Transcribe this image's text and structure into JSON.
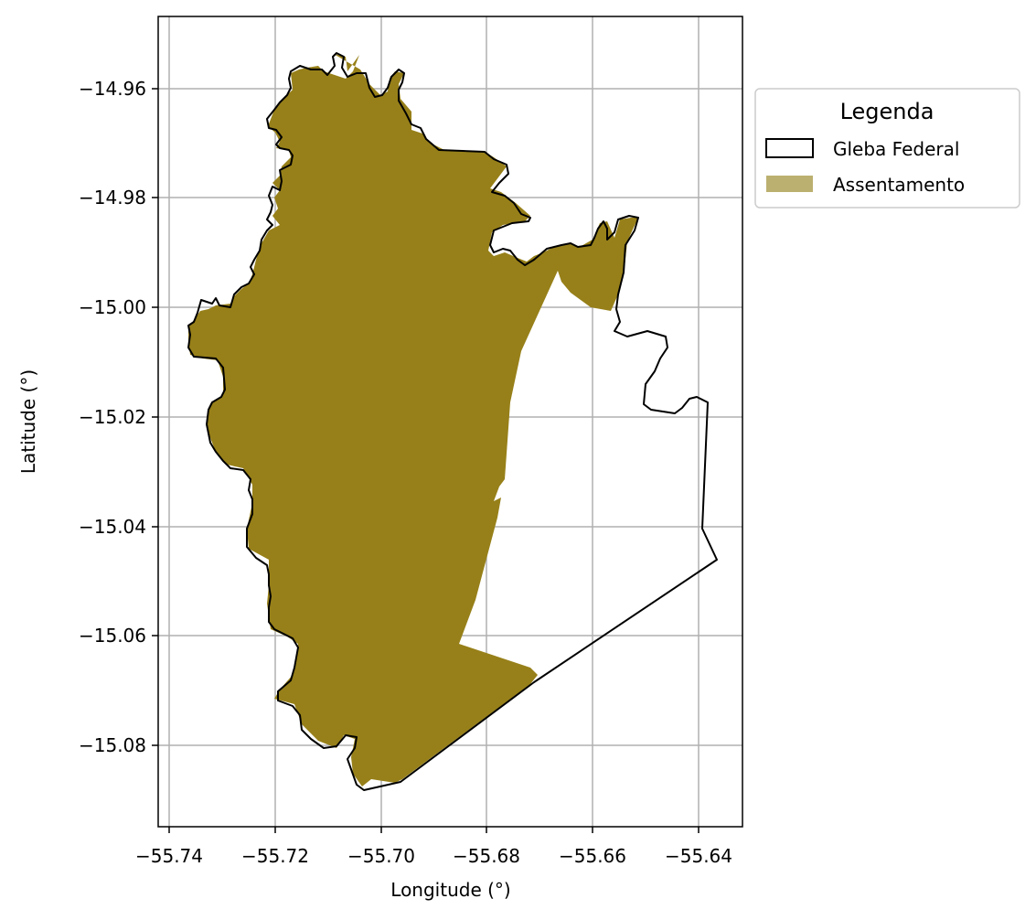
{
  "map": {
    "xlabel": "Longitude (°)",
    "ylabel": "Latitude (°)",
    "x_ticks": [
      "−55.74",
      "−55.72",
      "−55.70",
      "−55.68",
      "−55.66",
      "−55.64"
    ],
    "y_ticks": [
      "−14.96",
      "−14.98",
      "−15.00",
      "−15.02",
      "−15.04",
      "−15.06",
      "−15.08"
    ],
    "x_tick_values": [
      -55.74,
      -55.72,
      -55.7,
      -55.68,
      -55.66,
      -55.64
    ],
    "y_tick_values": [
      -14.96,
      -14.98,
      -15.0,
      -15.02,
      -15.04,
      -15.06,
      -15.08
    ],
    "xlim": [
      -55.742,
      -55.6313
    ],
    "ylim": [
      -15.0955,
      -14.9467
    ],
    "grid": true
  },
  "legend": {
    "title": "Legenda",
    "placement": "outside upper right",
    "entries": [
      {
        "label": "Gleba Federal",
        "style": "outline",
        "color": "#000000"
      },
      {
        "label": "Assentamento",
        "style": "fill",
        "color": "#bcb070"
      }
    ]
  },
  "colors": {
    "assentamento_fill": "#978019",
    "gleba_outline": "#000000",
    "grid": "#b0b0b0"
  }
}
